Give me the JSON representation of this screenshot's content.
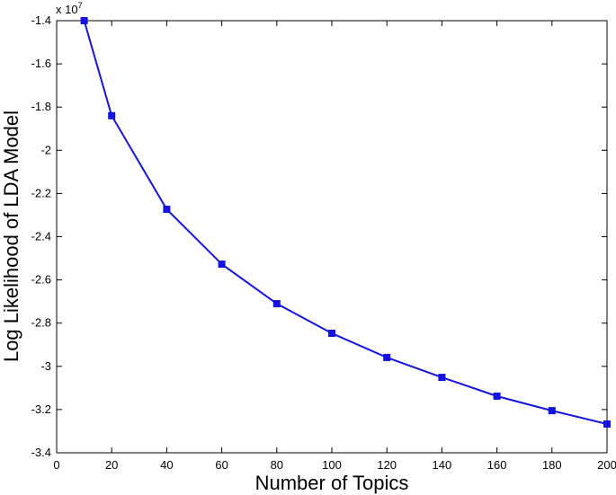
{
  "chart_data": {
    "type": "line",
    "x_label": "Number of Topics",
    "y_label": "Log Likelihood of LDA Model",
    "y_multiplier": {
      "base": "x 10",
      "exponent": "7"
    },
    "x": [
      10,
      20,
      40,
      60,
      80,
      100,
      120,
      140,
      160,
      180,
      200
    ],
    "series": [
      {
        "color": "#1414e0",
        "values": [
          -1.4,
          -1.84,
          -2.273,
          -2.527,
          -2.71,
          -2.847,
          -2.959,
          -3.051,
          -3.138,
          -3.205,
          -3.267
        ]
      }
    ],
    "xlim": [
      0,
      200
    ],
    "xticks": [
      0,
      20,
      40,
      60,
      80,
      100,
      120,
      140,
      160,
      180,
      200
    ],
    "ylim": [
      -3.4,
      -1.4
    ],
    "yticks": [
      -3.4,
      -3.2,
      -3,
      -2.8,
      -2.6,
      -2.4,
      -2.2,
      -2,
      -1.8,
      -1.6,
      -1.4
    ]
  }
}
